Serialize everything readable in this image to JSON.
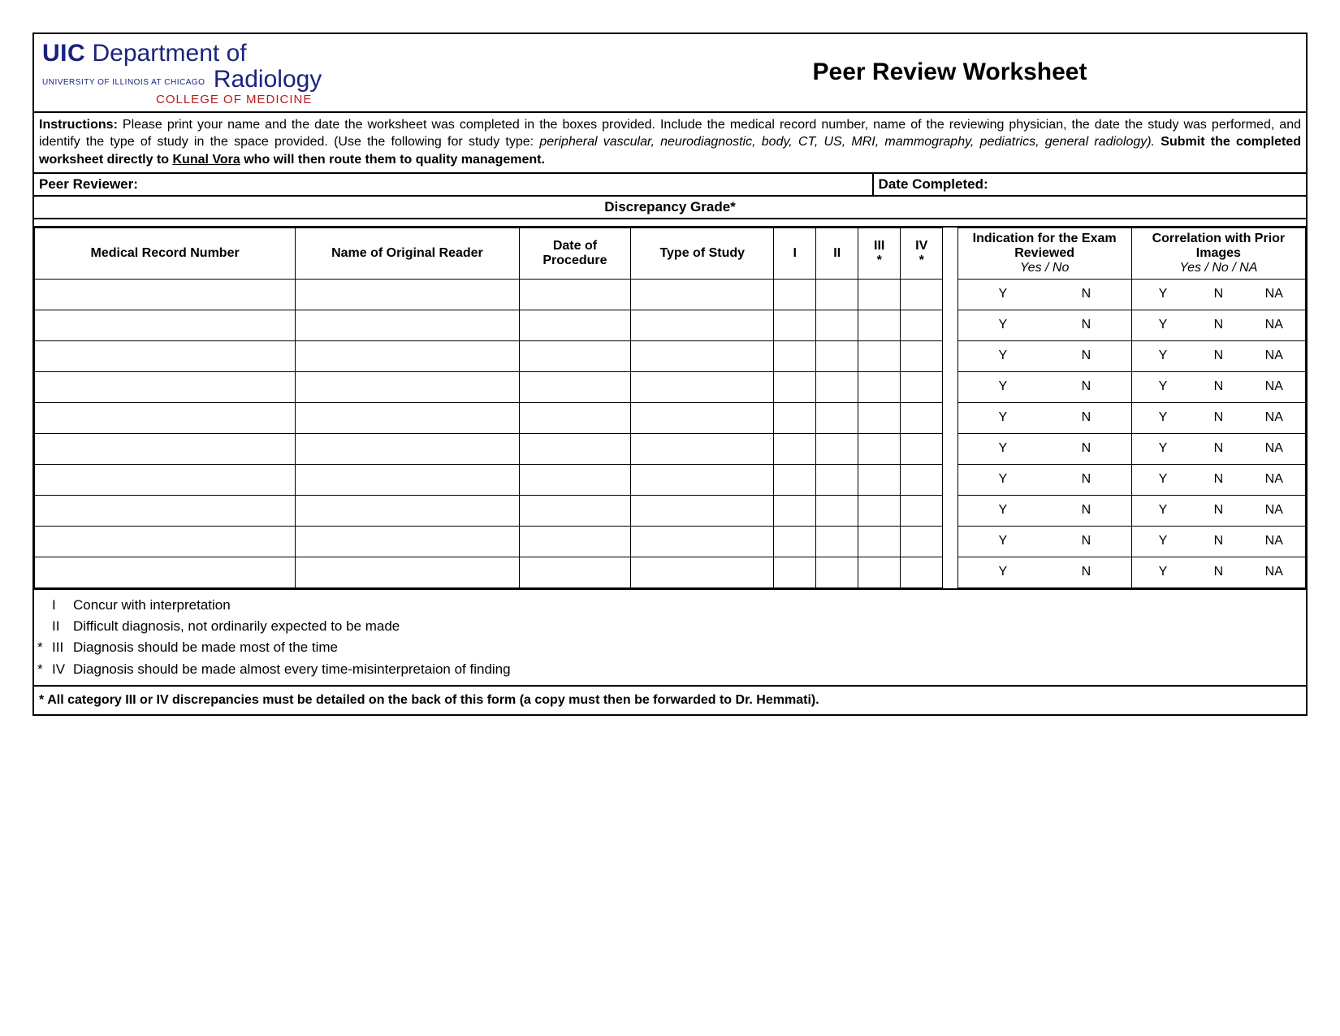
{
  "logo": {
    "line1_bold": "UIC",
    "line1_rest": "Department of",
    "subline": "UNIVERSITY OF ILLINOIS AT CHICAGO",
    "line2": "Radiology",
    "line3": "COLLEGE OF MEDICINE",
    "color_primary": "#1a237e",
    "color_secondary": "#b71c1c"
  },
  "title": "Peer Review Worksheet",
  "instructions": {
    "label": "Instructions:",
    "text1": "Please print your name and the date the worksheet was completed in the boxes provided.  Include the medical record number, name of the reviewing physician, the date the study was performed, and identify the type of study in the space provided.  (Use the following for study type: ",
    "italic": "peripheral vascular, neurodiagnostic, body, CT, US, MRI, mammography, pediatrics, general radiology).",
    "bold2a": "Submit the completed worksheet directly to ",
    "underline_name": "Kunal Vora",
    "bold2b": " who will then route them to quality management."
  },
  "reviewer_label": "Peer Reviewer:",
  "date_completed_label": "Date Completed:",
  "discrepancy_header": "Discrepancy Grade*",
  "columns": {
    "mrn": "Medical Record Number",
    "name": "Name of Original Reader",
    "date": "Date of Procedure",
    "type": "Type of Study",
    "g1": "I",
    "g2": "II",
    "g3": "III",
    "g3_star": "*",
    "g4": "IV",
    "g4_star": "*",
    "indication": "Indication for the Exam Reviewed",
    "indication_sub": "Yes / No",
    "correlation": "Correlation with Prior Images",
    "correlation_sub": "Yes / No / NA"
  },
  "row_options": {
    "ind_y": "Y",
    "ind_n": "N",
    "cor_y": "Y",
    "cor_n": "N",
    "cor_na": "NA"
  },
  "row_count": 10,
  "legend": {
    "l1": {
      "star": "",
      "rn": "I",
      "txt": "Concur with interpretation"
    },
    "l2": {
      "star": "",
      "rn": "II",
      "txt": "Difficult diagnosis, not ordinarily expected to be made"
    },
    "l3": {
      "star": "*",
      "rn": "III",
      "txt": "Diagnosis should be made most of the time"
    },
    "l4": {
      "star": "*",
      "rn": "IV",
      "txt": "Diagnosis should be made almost every time-misinterpretaion of finding"
    }
  },
  "footnote": {
    "star": "*",
    "text": "All category III or IV discrepancies must be detailed on the back of this form (a copy must then be forwarded to Dr. Hemmati)."
  }
}
